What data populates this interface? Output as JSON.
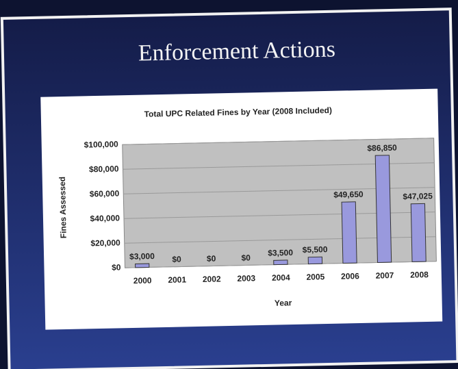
{
  "slide": {
    "title": "Enforcement Actions"
  },
  "chart_data": {
    "type": "bar",
    "title": "Total UPC Related Fines by Year (2008 Included)",
    "x_label": "Year",
    "y_label": "Fines Assessed",
    "categories": [
      "2000",
      "2001",
      "2002",
      "2003",
      "2004",
      "2005",
      "2006",
      "2007",
      "2008"
    ],
    "values": [
      3000,
      0,
      0,
      0,
      3500,
      5500,
      49650,
      86850,
      47025
    ],
    "value_labels": [
      "$3,000",
      "$0",
      "$0",
      "$0",
      "$3,500",
      "$5,500",
      "$49,650",
      "$86,850",
      "$47,025"
    ],
    "color": "#9999dd",
    "ylim": [
      0,
      100000
    ],
    "yticks": [
      {
        "value": 0,
        "label": "$0"
      },
      {
        "value": 20000,
        "label": "$20,000"
      },
      {
        "value": 40000,
        "label": "$40,000"
      },
      {
        "value": 60000,
        "label": "$60,000"
      },
      {
        "value": 80000,
        "label": "$80,000"
      },
      {
        "value": 100000,
        "label": "$100,000"
      }
    ],
    "grid": true
  }
}
